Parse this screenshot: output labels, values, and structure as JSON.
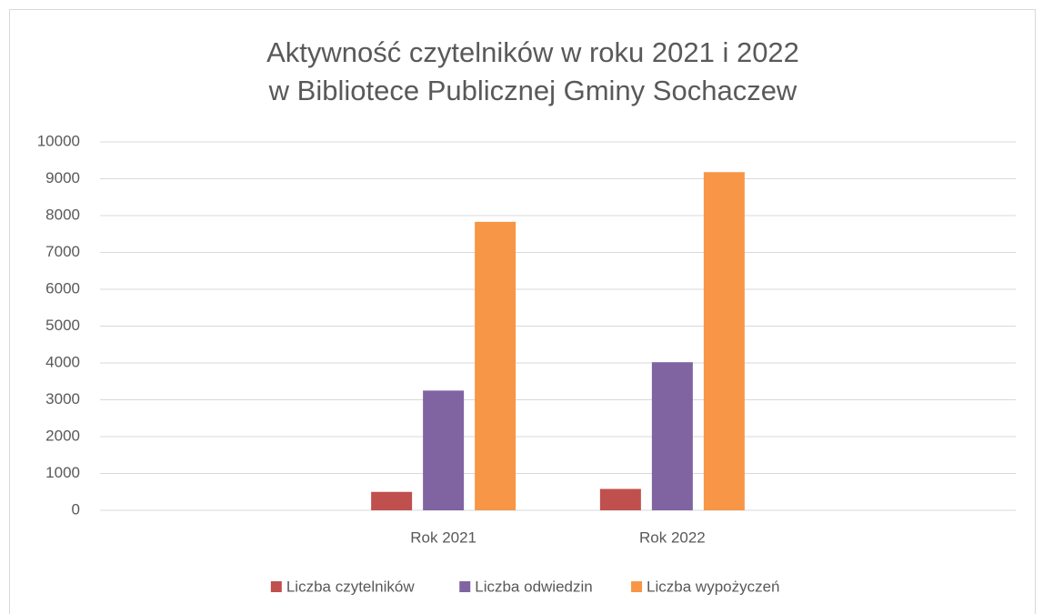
{
  "chart_data": {
    "type": "bar",
    "title": [
      "Aktywność czytelników w roku 2021 i 2022",
      "w Bibliotece Publicznej Gminy Sochaczew"
    ],
    "categories": [
      null,
      "Rok 2021",
      "Rok 2022",
      null
    ],
    "series": [
      {
        "name": "Liczba czytelników",
        "color": "#c0504d",
        "values": [
          null,
          500,
          580,
          null
        ]
      },
      {
        "name": "Liczba odwiedzin",
        "color": "#8064a2",
        "values": [
          null,
          3250,
          4020,
          null
        ]
      },
      {
        "name": "Liczba wypożyczeń",
        "color": "#f79646",
        "values": [
          null,
          7830,
          9180,
          null
        ]
      }
    ],
    "ylim": [
      0,
      10000
    ],
    "yticks": [
      0,
      1000,
      2000,
      3000,
      4000,
      5000,
      6000,
      7000,
      8000,
      9000,
      10000
    ],
    "grid": true,
    "legend": "bottom"
  }
}
